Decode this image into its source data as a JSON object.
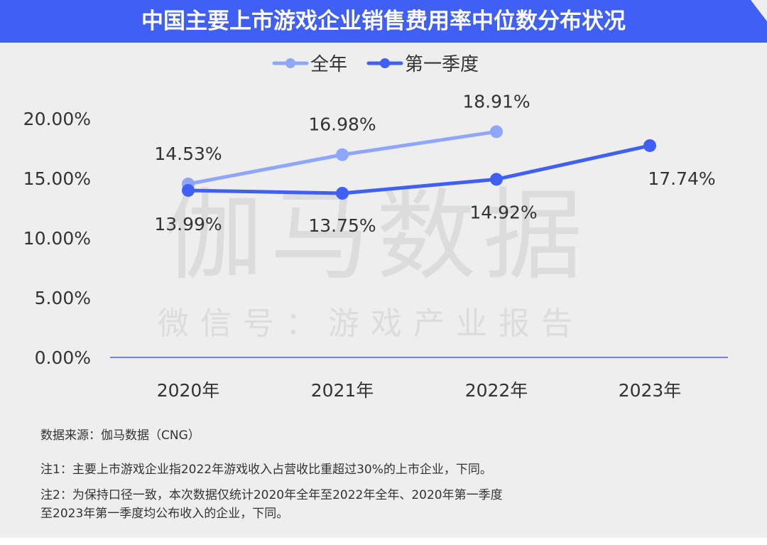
{
  "title": "中国主要上市游戏企业销售费用率中位数分布状况",
  "watermark": {
    "main": "伽马数据",
    "sub": "微信号：游戏产业报告"
  },
  "chart_data": {
    "type": "line",
    "title": "中国主要上市游戏企业销售费用率中位数分布状况",
    "categories": [
      "2020年",
      "2021年",
      "2022年",
      "2023年"
    ],
    "series": [
      {
        "name": "全年",
        "color": "#8ea6fb",
        "values": [
          14.53,
          16.98,
          18.91,
          null
        ],
        "labels": [
          "14.53%",
          "16.98%",
          "18.91%",
          null
        ]
      },
      {
        "name": "第一季度",
        "color": "#3f5ff5",
        "values": [
          13.99,
          13.75,
          14.92,
          17.74
        ],
        "labels": [
          "13.99%",
          "13.75%",
          "14.92%",
          "17.74%"
        ]
      }
    ],
    "yticks": [
      0,
      5,
      10,
      15,
      20
    ],
    "ytick_labels": [
      "0.00%",
      "5.00%",
      "10.00%",
      "15.00%",
      "20.00%"
    ],
    "ylim": [
      0,
      20
    ],
    "xlabel": "",
    "ylabel": "",
    "legend": "top-center",
    "grid": false
  },
  "footer": {
    "source": "数据来源：伽马数据（CNG）",
    "note1": "注1：主要上市游戏企业指2022年游戏收入占营收比重超过30%的上市企业，下同。",
    "note2_line1": "注2：为保持口径一致，本次数据仅统计2020年全年至2022年全年、2020年第一季度",
    "note2_line2": "至2023年第一季度均公布收入的企业，下同。"
  }
}
